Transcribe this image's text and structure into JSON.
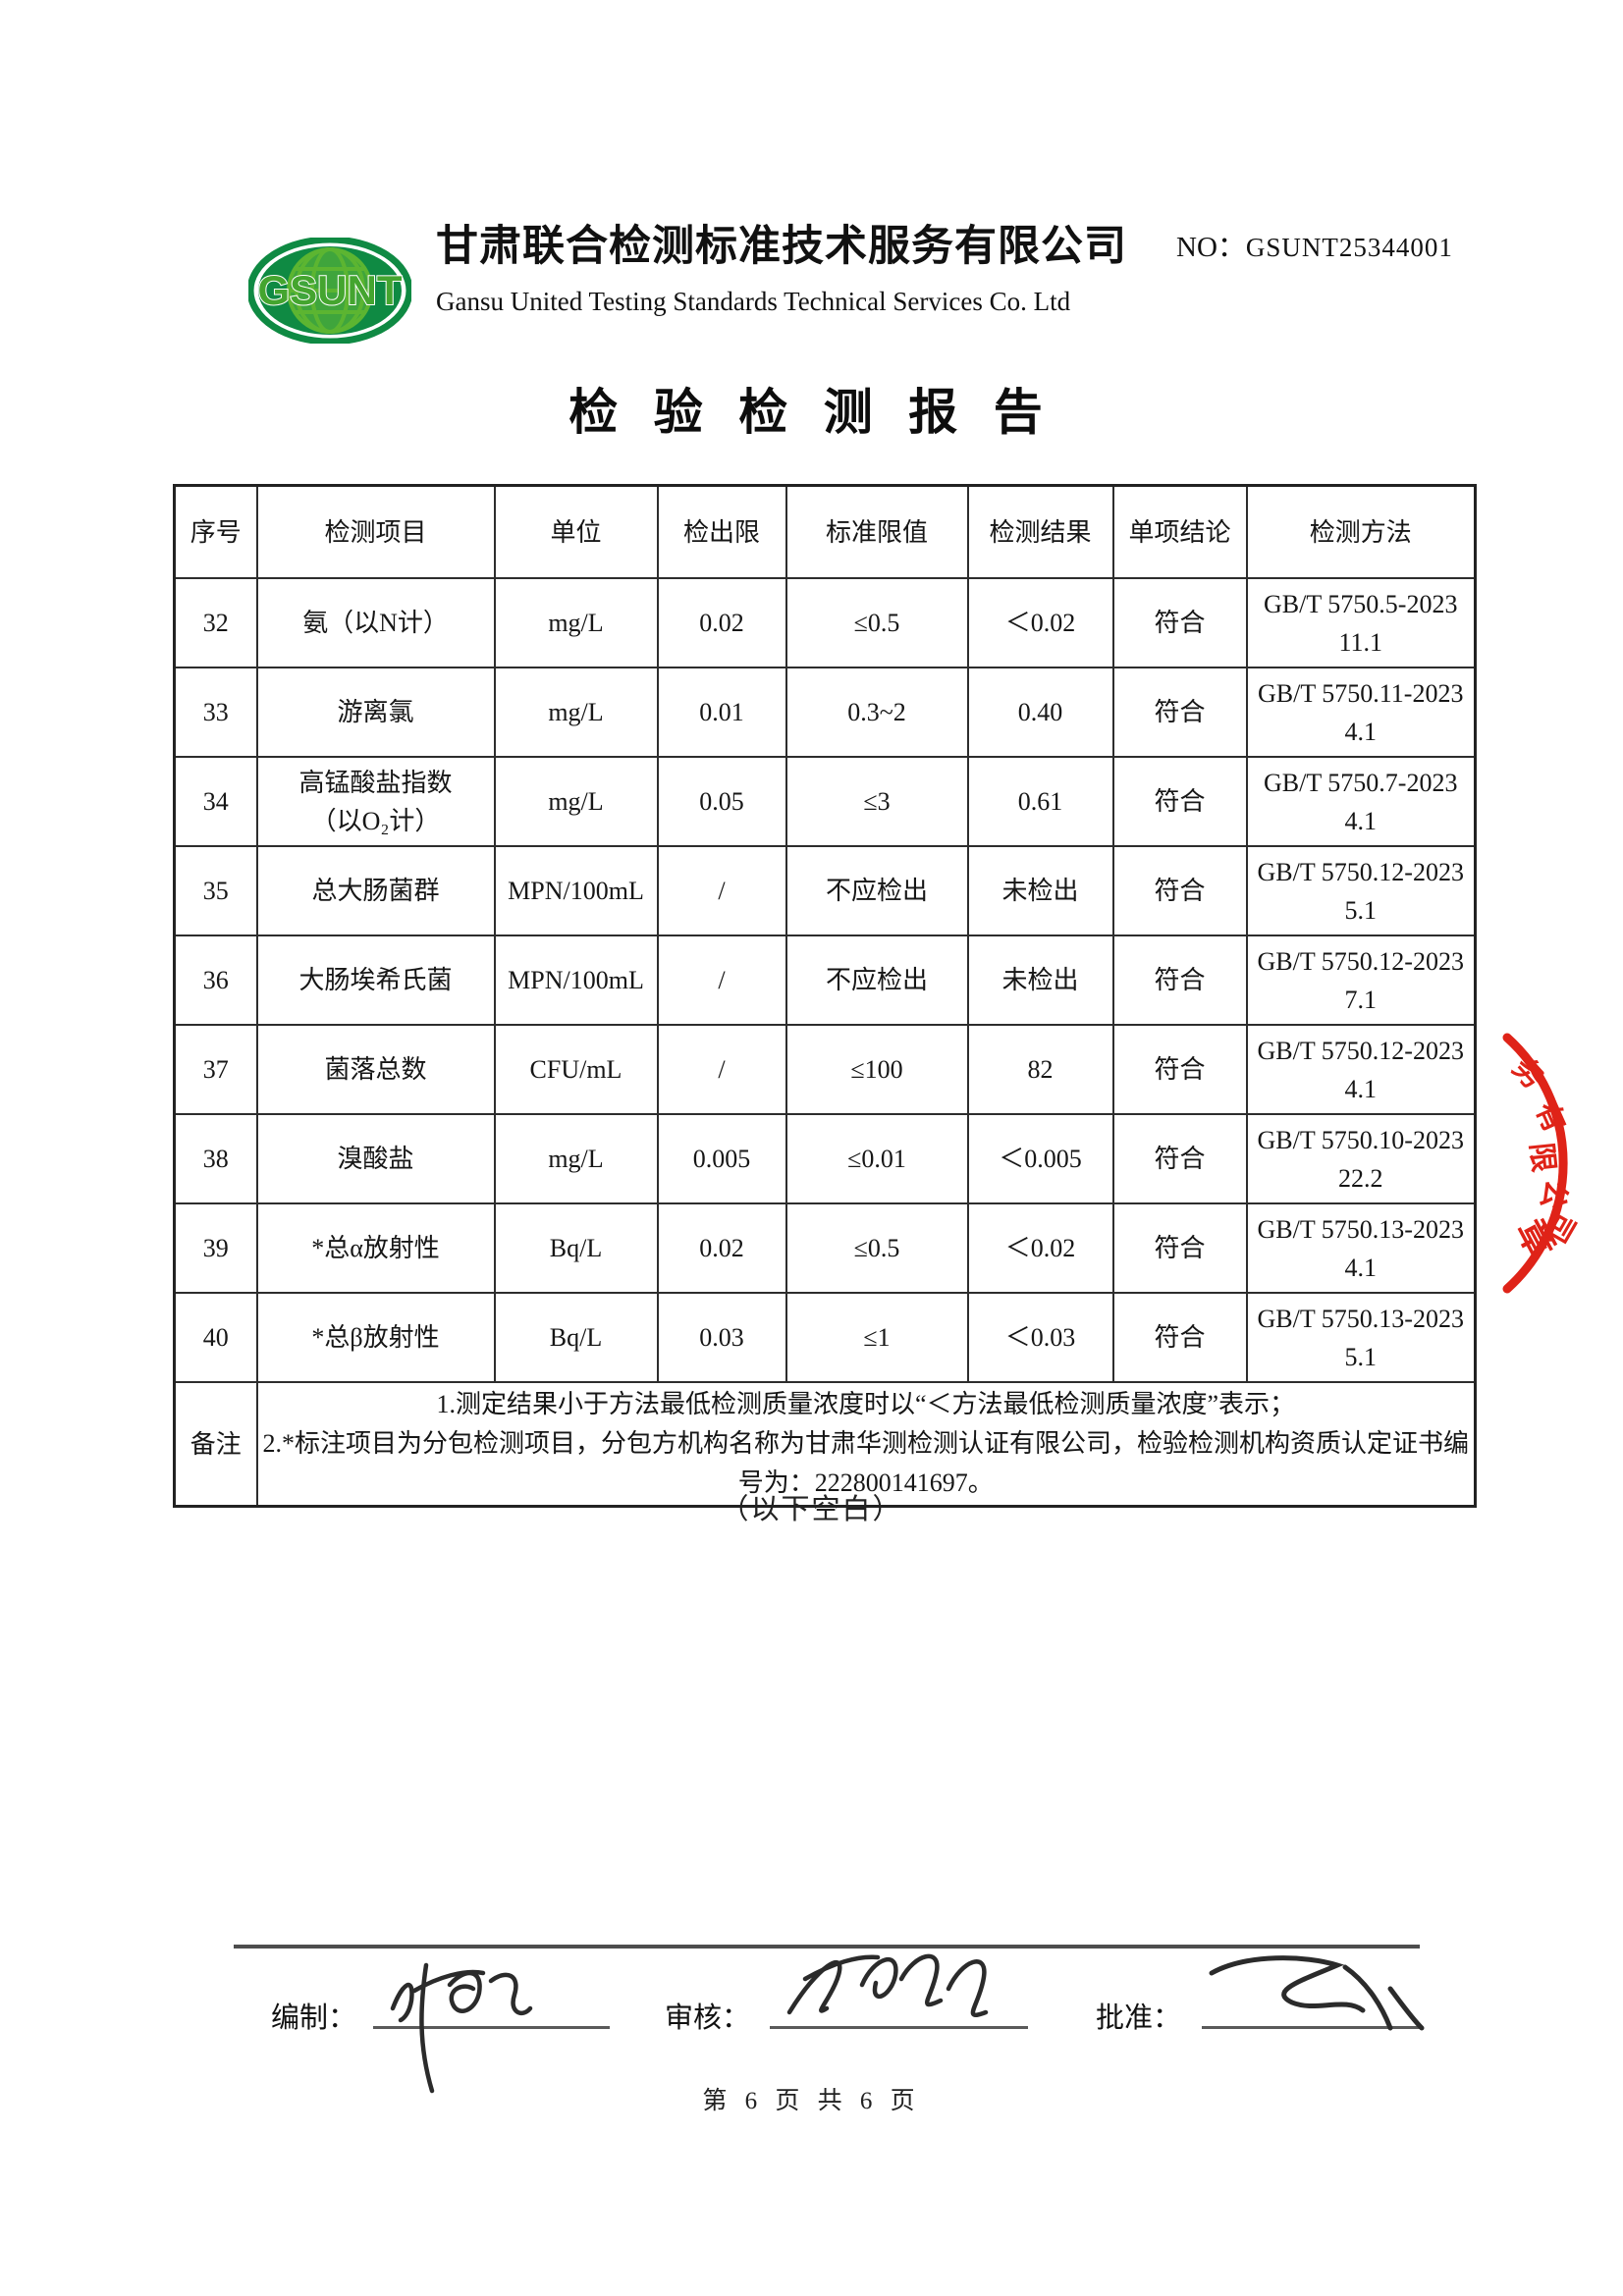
{
  "header": {
    "logo_text": "GSUNT",
    "company_cn": "甘肃联合检测标准技术服务有限公司",
    "company_en": "Gansu United Testing Standards Technical Services Co. Ltd",
    "report_no_label": "NO：",
    "report_no_value": "GSUNT25344001"
  },
  "title": "检 验 检 测 报 告",
  "table": {
    "headers": [
      "序号",
      "检测项目",
      "单位",
      "检出限",
      "标准限值",
      "检测结果",
      "单项结论",
      "检测方法"
    ],
    "rows": [
      {
        "no": "32",
        "item": "氨（以N计）",
        "unit": "mg/L",
        "limit": "0.02",
        "standard": "≤0.5",
        "result": "＜0.02",
        "conclusion": "符合",
        "method": "GB/T 5750.5-2023",
        "clause": "11.1"
      },
      {
        "no": "33",
        "item": "游离氯",
        "unit": "mg/L",
        "limit": "0.01",
        "standard": "0.3~2",
        "result": "0.40",
        "conclusion": "符合",
        "method": "GB/T 5750.11-2023",
        "clause": "4.1"
      },
      {
        "no": "34",
        "item": "高锰酸盐指数\n（以O₂计）",
        "unit": "mg/L",
        "limit": "0.05",
        "standard": "≤3",
        "result": "0.61",
        "conclusion": "符合",
        "method": "GB/T 5750.7-2023",
        "clause": "4.1"
      },
      {
        "no": "35",
        "item": "总大肠菌群",
        "unit": "MPN/100mL",
        "limit": "/",
        "standard": "不应检出",
        "result": "未检出",
        "conclusion": "符合",
        "method": "GB/T 5750.12-2023",
        "clause": "5.1"
      },
      {
        "no": "36",
        "item": "大肠埃希氏菌",
        "unit": "MPN/100mL",
        "limit": "/",
        "standard": "不应检出",
        "result": "未检出",
        "conclusion": "符合",
        "method": "GB/T 5750.12-2023",
        "clause": "7.1"
      },
      {
        "no": "37",
        "item": "菌落总数",
        "unit": "CFU/mL",
        "limit": "/",
        "standard": "≤100",
        "result": "82",
        "conclusion": "符合",
        "method": "GB/T 5750.12-2023",
        "clause": "4.1"
      },
      {
        "no": "38",
        "item": "溴酸盐",
        "unit": "mg/L",
        "limit": "0.005",
        "standard": "≤0.01",
        "result": "＜0.005",
        "conclusion": "符合",
        "method": "GB/T 5750.10-2023",
        "clause": "22.2"
      },
      {
        "no": "39",
        "item": "*总α放射性",
        "unit": "Bq/L",
        "limit": "0.02",
        "standard": "≤0.5",
        "result": "＜0.02",
        "conclusion": "符合",
        "method": "GB/T 5750.13-2023",
        "clause": "4.1"
      },
      {
        "no": "40",
        "item": "*总β放射性",
        "unit": "Bq/L",
        "limit": "0.03",
        "standard": "≤1",
        "result": "＜0.03",
        "conclusion": "符合",
        "method": "GB/T 5750.13-2023",
        "clause": "5.1"
      }
    ],
    "remark_label": "备注",
    "remarks": [
      "1.测定结果小于方法最低检测质量浓度时以“＜方法最低检测质量浓度”表示；",
      "2.*标注项目为分包检测项目，分包方机构名称为甘肃华测检测认证有限公司，检验检测机构资质认定证书编号为：222800141697。"
    ]
  },
  "blank_note": "（以下空白）",
  "stamp": {
    "arc_chars": [
      "务",
      "有",
      "限",
      "公",
      "司"
    ],
    "bottom_char": "章",
    "color": "#df2318"
  },
  "signatures": {
    "prepared_label": "编制：",
    "reviewed_label": "审核：",
    "approved_label": "批准："
  },
  "footer": {
    "page_text": "第 6 页 共 6 页"
  }
}
